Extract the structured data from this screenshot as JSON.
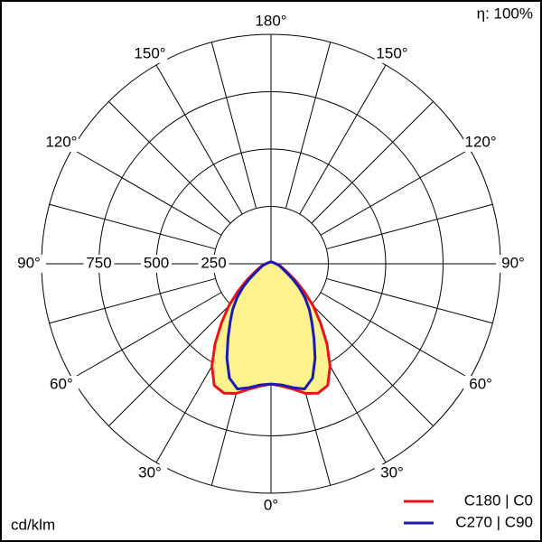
{
  "chart_data": {
    "type": "polar",
    "efficiency_label": "η: 100%",
    "unit_label": "cd/klm",
    "rlim": [
      0,
      1000
    ],
    "rticks": [
      250,
      500,
      750
    ],
    "thetaticks": [
      {
        "value": 0,
        "label": "0°"
      },
      {
        "value": 30,
        "label": "30°"
      },
      {
        "value": 60,
        "label": "60°"
      },
      {
        "value": 90,
        "label": "90°"
      },
      {
        "value": 120,
        "label": "120°"
      },
      {
        "value": 150,
        "label": "150°"
      },
      {
        "value": 180,
        "label": "180°"
      }
    ],
    "area_color": "#fdf28e",
    "theta": [
      0,
      5,
      10,
      15,
      20,
      25,
      30,
      35,
      40,
      45,
      50,
      55,
      60,
      65,
      70,
      75,
      80,
      85,
      90,
      100,
      110,
      120,
      130,
      140,
      150,
      160,
      170,
      180
    ],
    "series": [
      {
        "name": "C180 | C0",
        "color": "#e8141a",
        "values": [
          524,
          535,
          555,
          585,
          600,
          585,
          515,
          425,
          335,
          260,
          190,
          135,
          95,
          70,
          55,
          45,
          38,
          30,
          22,
          16,
          13,
          11,
          10,
          9,
          8,
          8,
          8,
          8
        ]
      },
      {
        "name": "C270 | C90",
        "color": "#1a1ab4",
        "values": [
          524,
          530,
          548,
          565,
          530,
          455,
          375,
          310,
          260,
          210,
          160,
          115,
          80,
          60,
          48,
          40,
          33,
          27,
          21,
          16,
          13,
          11,
          10,
          9,
          8,
          8,
          8,
          8
        ]
      }
    ]
  }
}
